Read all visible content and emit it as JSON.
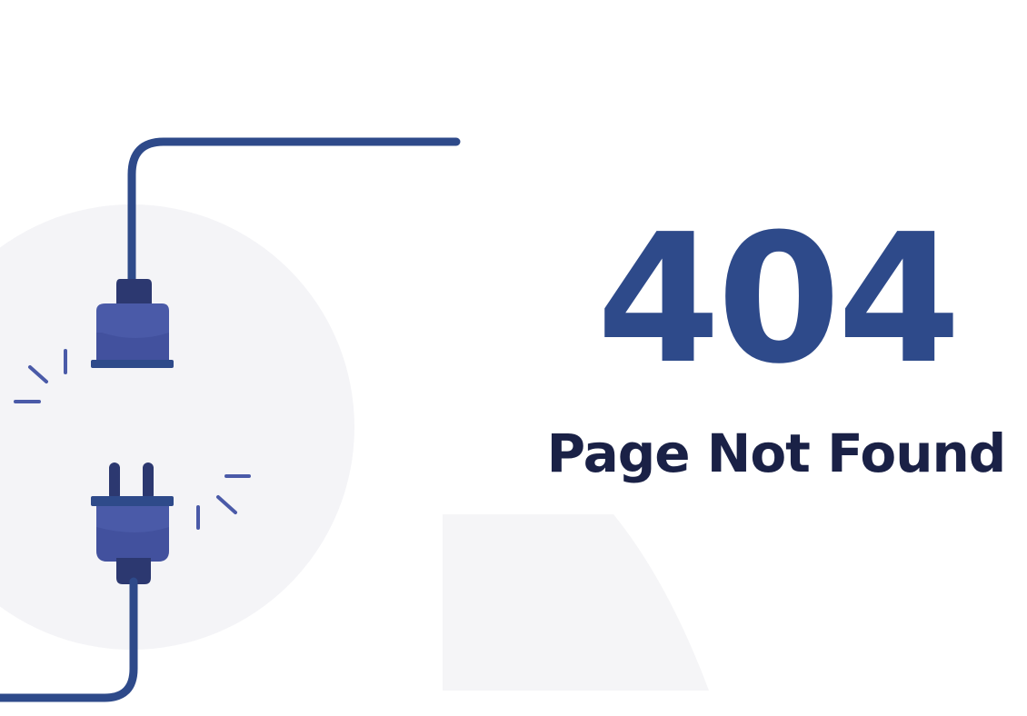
{
  "error": {
    "code": "404",
    "message": "Page Not Found"
  },
  "illustration": {
    "subject": "unplugged power cable",
    "icons": [
      "power-plug-icon",
      "power-socket-icon"
    ]
  },
  "colors": {
    "heading": "#2e4a8a",
    "message": "#1a2146",
    "cable": "#2e4a8a",
    "plug_body": "#4a5aa8",
    "plug_cap": "#2c3870",
    "spark": "#4a5aa8",
    "backdrop_circle": "#f4f4f7",
    "backdrop_panel": "#f5f5f7"
  }
}
